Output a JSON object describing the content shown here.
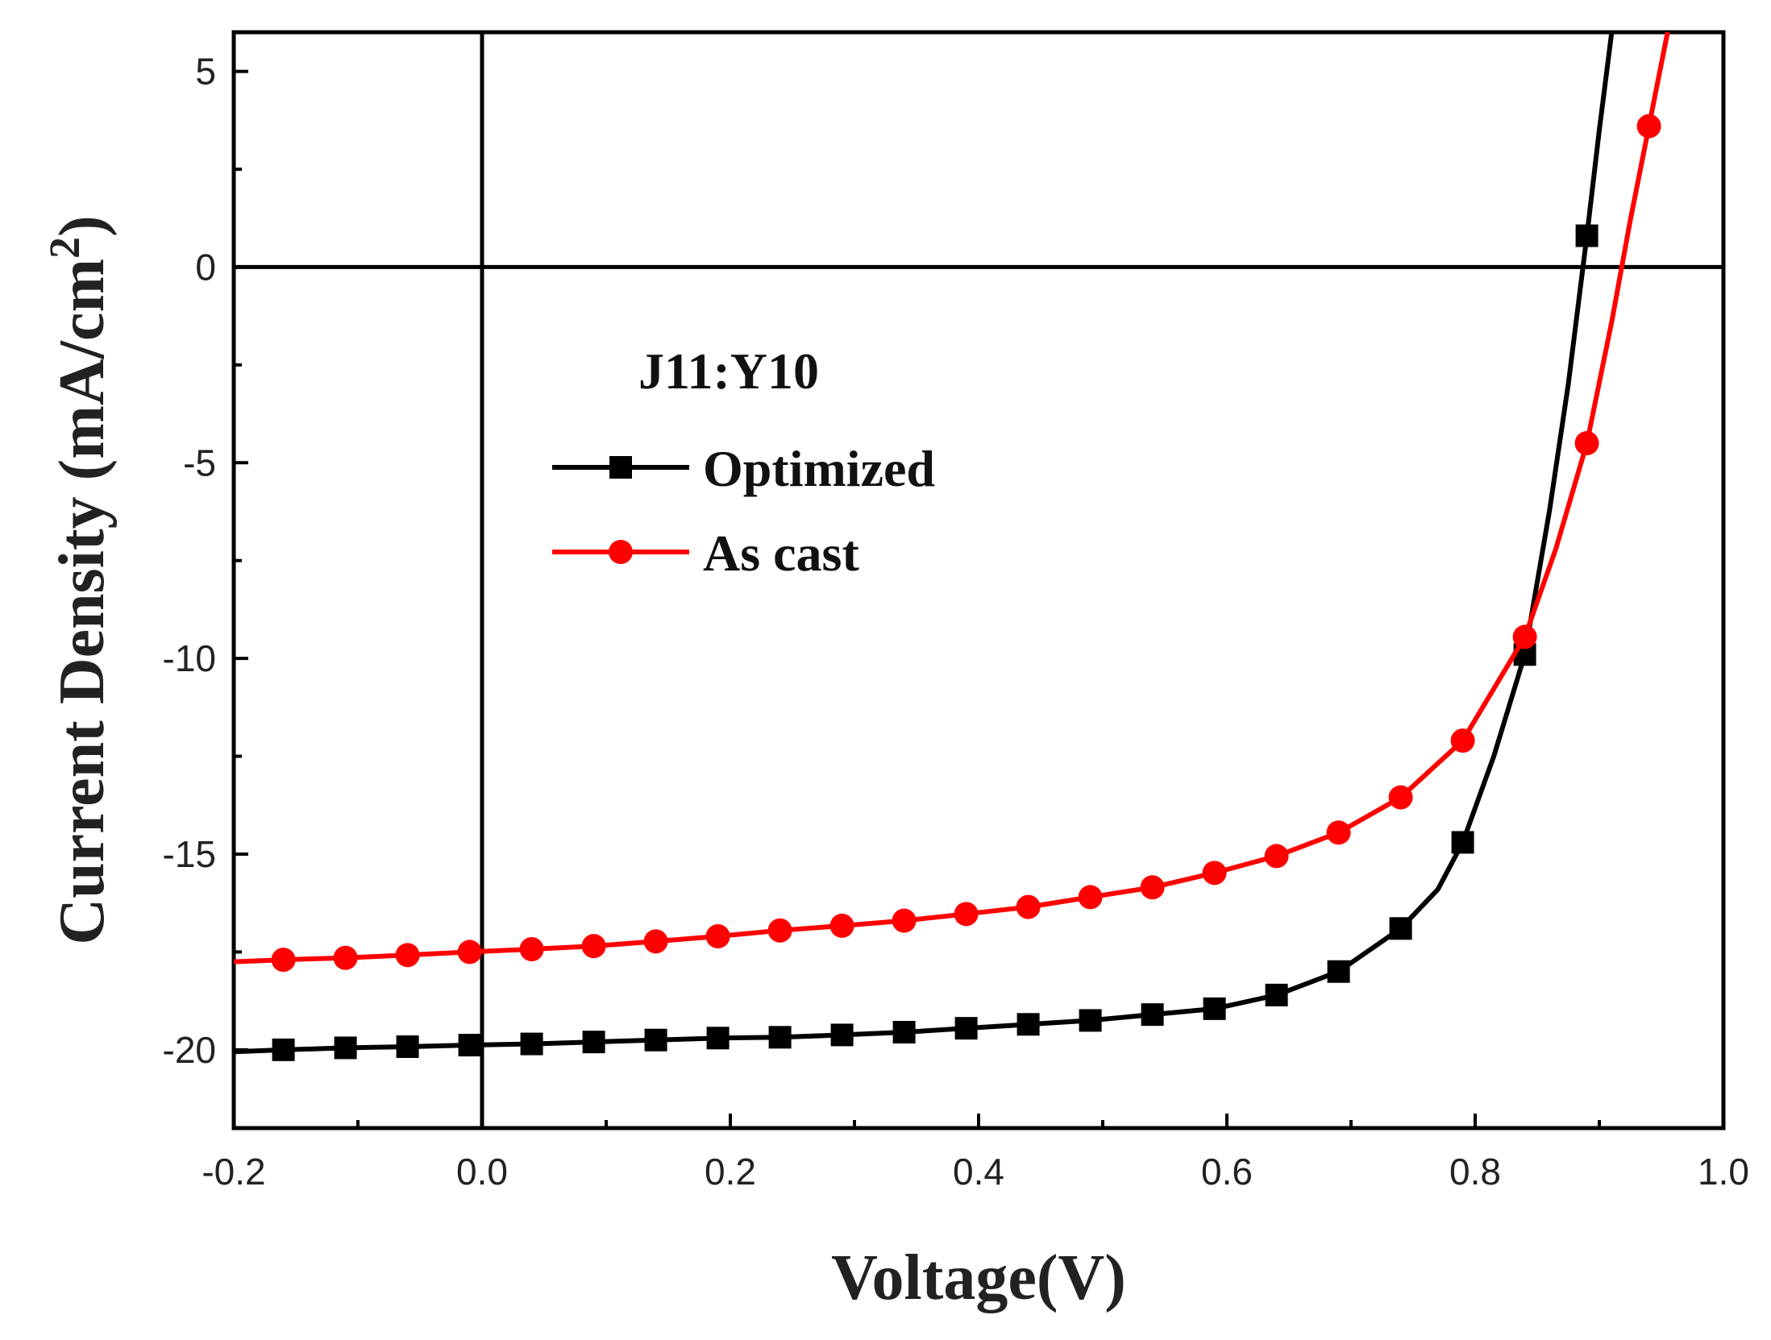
{
  "chart_data": {
    "type": "line",
    "title": "",
    "annotation": "J11:Y10",
    "xlabel": "Voltage(V)",
    "ylabel_main": "Current Density (mA/cm",
    "ylabel_sup": "2",
    "ylabel_close": ")",
    "xlim": [
      -0.2,
      1.0
    ],
    "ylim": [
      -22,
      6
    ],
    "x_ticks": [
      {
        "value": -0.2,
        "label": "-0.2"
      },
      {
        "value": 0.0,
        "label": "0.0"
      },
      {
        "value": 0.2,
        "label": "0.2"
      },
      {
        "value": 0.4,
        "label": "0.4"
      },
      {
        "value": 0.6,
        "label": "0.6"
      },
      {
        "value": 0.8,
        "label": "0.8"
      },
      {
        "value": 1.0,
        "label": "1.0"
      }
    ],
    "y_ticks": [
      {
        "value": 5,
        "label": "5"
      },
      {
        "value": 0,
        "label": "0"
      },
      {
        "value": -5,
        "label": "-5"
      },
      {
        "value": -10,
        "label": "-10"
      },
      {
        "value": -15,
        "label": "-15"
      },
      {
        "value": -20,
        "label": "-20"
      }
    ],
    "reference_lines": {
      "x": 0,
      "y": 0
    },
    "legend_position": "upper-left",
    "series": [
      {
        "name": "Optimized",
        "color": "#000000",
        "marker": "square",
        "line": [
          [
            -0.2,
            -20.05
          ],
          [
            -0.16,
            -20.0
          ],
          [
            -0.11,
            -19.95
          ],
          [
            -0.06,
            -19.92
          ],
          [
            -0.01,
            -19.88
          ],
          [
            0.04,
            -19.85
          ],
          [
            0.09,
            -19.8
          ],
          [
            0.14,
            -19.75
          ],
          [
            0.19,
            -19.7
          ],
          [
            0.24,
            -19.68
          ],
          [
            0.29,
            -19.62
          ],
          [
            0.34,
            -19.55
          ],
          [
            0.39,
            -19.45
          ],
          [
            0.44,
            -19.35
          ],
          [
            0.49,
            -19.25
          ],
          [
            0.54,
            -19.1
          ],
          [
            0.59,
            -18.95
          ],
          [
            0.64,
            -18.6
          ],
          [
            0.69,
            -18.0
          ],
          [
            0.74,
            -16.9
          ],
          [
            0.77,
            -15.9
          ],
          [
            0.79,
            -14.7
          ],
          [
            0.815,
            -12.5
          ],
          [
            0.84,
            -9.9
          ],
          [
            0.86,
            -6.2
          ],
          [
            0.875,
            -3.0
          ],
          [
            0.89,
            0.8
          ],
          [
            0.9,
            3.5
          ],
          [
            0.91,
            6.0
          ]
        ],
        "markers": [
          [
            -0.16,
            -20.0
          ],
          [
            -0.11,
            -19.95
          ],
          [
            -0.06,
            -19.92
          ],
          [
            -0.01,
            -19.88
          ],
          [
            0.04,
            -19.85
          ],
          [
            0.09,
            -19.8
          ],
          [
            0.14,
            -19.75
          ],
          [
            0.19,
            -19.7
          ],
          [
            0.24,
            -19.68
          ],
          [
            0.29,
            -19.62
          ],
          [
            0.34,
            -19.55
          ],
          [
            0.39,
            -19.45
          ],
          [
            0.44,
            -19.35
          ],
          [
            0.49,
            -19.25
          ],
          [
            0.54,
            -19.1
          ],
          [
            0.59,
            -18.95
          ],
          [
            0.64,
            -18.6
          ],
          [
            0.69,
            -18.0
          ],
          [
            0.74,
            -16.9
          ],
          [
            0.79,
            -14.7
          ],
          [
            0.84,
            -9.9
          ],
          [
            0.89,
            0.8
          ]
        ]
      },
      {
        "name": "As cast",
        "color": "#ff0000",
        "marker": "circle",
        "line": [
          [
            -0.2,
            -17.75
          ],
          [
            -0.16,
            -17.7
          ],
          [
            -0.11,
            -17.65
          ],
          [
            -0.06,
            -17.58
          ],
          [
            -0.01,
            -17.5
          ],
          [
            0.04,
            -17.43
          ],
          [
            0.09,
            -17.35
          ],
          [
            0.14,
            -17.23
          ],
          [
            0.19,
            -17.1
          ],
          [
            0.24,
            -16.95
          ],
          [
            0.29,
            -16.83
          ],
          [
            0.34,
            -16.7
          ],
          [
            0.39,
            -16.53
          ],
          [
            0.44,
            -16.35
          ],
          [
            0.49,
            -16.1
          ],
          [
            0.54,
            -15.85
          ],
          [
            0.59,
            -15.48
          ],
          [
            0.64,
            -15.05
          ],
          [
            0.69,
            -14.45
          ],
          [
            0.74,
            -13.55
          ],
          [
            0.79,
            -12.1
          ],
          [
            0.84,
            -9.45
          ],
          [
            0.865,
            -7.2
          ],
          [
            0.89,
            -4.5
          ],
          [
            0.91,
            -1.4
          ],
          [
            0.925,
            1.2
          ],
          [
            0.94,
            3.6
          ],
          [
            0.955,
            6.0
          ]
        ],
        "markers": [
          [
            -0.16,
            -17.7
          ],
          [
            -0.11,
            -17.65
          ],
          [
            -0.06,
            -17.58
          ],
          [
            -0.01,
            -17.5
          ],
          [
            0.04,
            -17.43
          ],
          [
            0.09,
            -17.35
          ],
          [
            0.14,
            -17.23
          ],
          [
            0.19,
            -17.1
          ],
          [
            0.24,
            -16.95
          ],
          [
            0.29,
            -16.83
          ],
          [
            0.34,
            -16.7
          ],
          [
            0.39,
            -16.53
          ],
          [
            0.44,
            -16.35
          ],
          [
            0.49,
            -16.1
          ],
          [
            0.54,
            -15.85
          ],
          [
            0.59,
            -15.48
          ],
          [
            0.64,
            -15.05
          ],
          [
            0.69,
            -14.45
          ],
          [
            0.74,
            -13.55
          ],
          [
            0.79,
            -12.1
          ],
          [
            0.84,
            -9.45
          ],
          [
            0.89,
            -4.5
          ],
          [
            0.94,
            3.6
          ]
        ]
      }
    ]
  }
}
